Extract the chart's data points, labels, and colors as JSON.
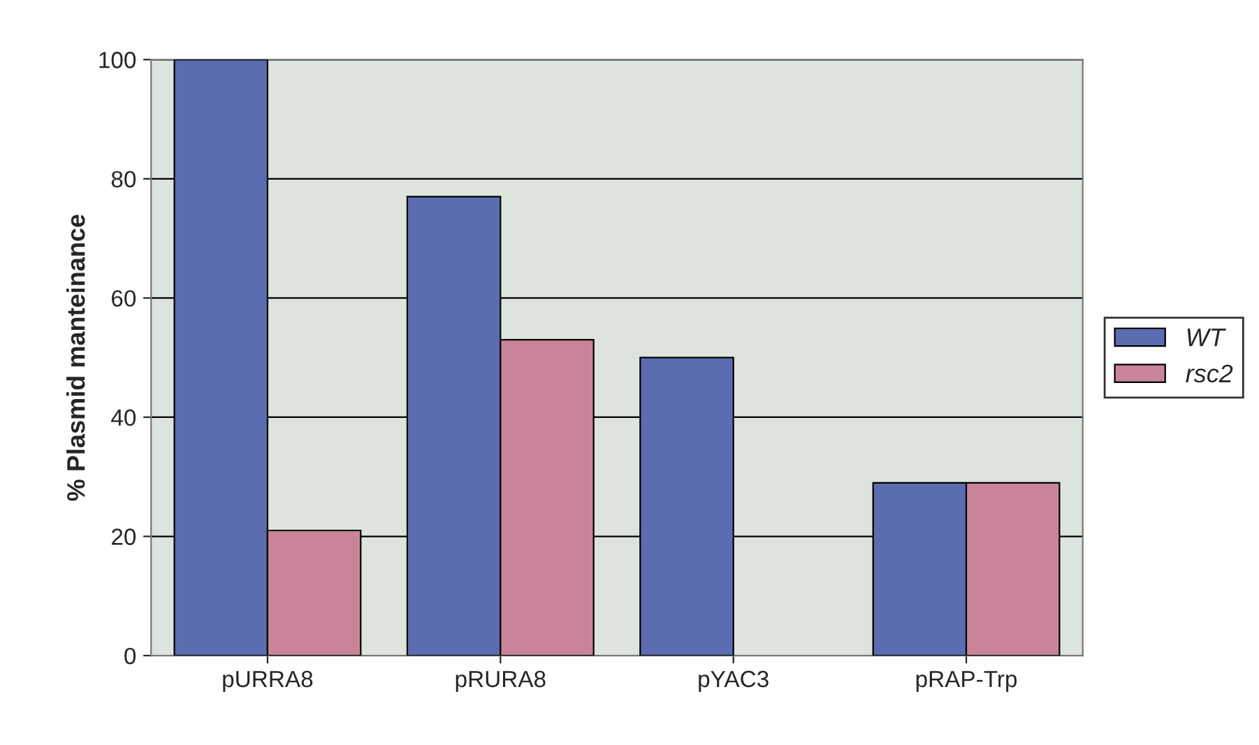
{
  "chart_data": {
    "type": "bar",
    "ylabel": "% Plasmid manteinance",
    "categories": [
      "pURRA8",
      "pRURA8",
      "pYAC3",
      "pRAP-Trp"
    ],
    "series": [
      {
        "name": "WT",
        "color": "#5b6db0",
        "values": [
          100,
          77,
          50,
          29
        ]
      },
      {
        "name": "rsc2",
        "color": "#c9849a",
        "values": [
          21,
          53,
          null,
          29
        ]
      }
    ],
    "ylim": [
      0,
      100
    ],
    "yticks": [
      0,
      20,
      40,
      60,
      80,
      100
    ],
    "grid": "y",
    "legend": "right"
  }
}
